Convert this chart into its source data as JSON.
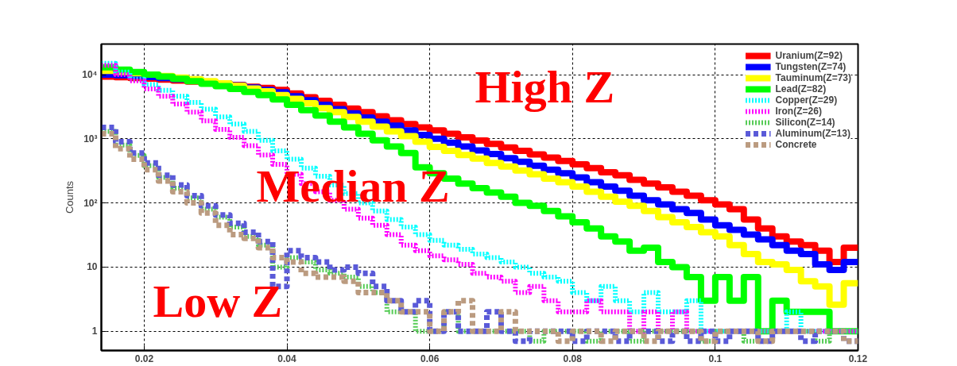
{
  "chart_data": {
    "type": "histogram",
    "ylabel": "Counts",
    "log": "y",
    "grid": true,
    "legend": "top right",
    "xlim": [
      0.014,
      0.12
    ],
    "xticks": [
      0.02,
      0.04,
      0.06,
      0.08,
      0.1,
      0.12
    ],
    "ylim": [
      0.5,
      30000
    ],
    "yticks": [
      1,
      10,
      {
        "value": 100,
        "label": "10²"
      },
      {
        "value": 1000,
        "label": "10³"
      },
      {
        "value": 10000,
        "label": "10⁴"
      }
    ],
    "annotations": [
      "High Z",
      "Median Z",
      "Low Z"
    ],
    "bins": [
      0.014,
      0.016,
      0.018,
      0.02,
      0.022,
      0.024,
      0.026,
      0.028,
      0.03,
      0.032,
      0.034,
      0.036,
      0.038,
      0.04,
      0.042,
      0.044,
      0.046,
      0.048,
      0.05,
      0.052,
      0.054,
      0.056,
      0.058,
      0.06,
      0.062,
      0.064,
      0.066,
      0.068,
      0.07,
      0.072,
      0.074,
      0.076,
      0.078,
      0.08,
      0.082,
      0.084,
      0.086,
      0.088,
      0.09,
      0.092,
      0.094,
      0.096,
      0.098,
      0.1,
      0.102,
      0.104,
      0.106,
      0.108,
      0.11,
      0.112,
      0.114,
      0.116,
      0.118,
      0.12
    ],
    "series": [
      {
        "name": "Uranium(Z=92)",
        "color": "#ff0000",
        "line_style": "solid",
        "values": [
          9300,
          9100,
          8900,
          8700,
          8400,
          8100,
          7800,
          7500,
          7200,
          6900,
          6500,
          6200,
          5800,
          5100,
          4450,
          3900,
          3400,
          2950,
          2600,
          2250,
          1950,
          1700,
          1500,
          1350,
          1200,
          1050,
          940,
          830,
          730,
          650,
          570,
          510,
          450,
          400,
          350,
          300,
          270,
          230,
          200,
          175,
          150,
          130,
          110,
          95,
          80,
          55,
          40,
          30,
          25,
          22,
          18,
          12,
          20
        ]
      },
      {
        "name": "Tungsten(Z=74)",
        "color": "#0000ff",
        "line_style": "solid",
        "values": [
          10000,
          9800,
          9500,
          9200,
          8900,
          8500,
          8100,
          7700,
          7300,
          6800,
          6300,
          5800,
          5300,
          4600,
          4000,
          3400,
          2900,
          2500,
          2150,
          1850,
          1600,
          1350,
          1150,
          1000,
          870,
          760,
          660,
          580,
          500,
          440,
          380,
          330,
          290,
          250,
          210,
          180,
          155,
          130,
          110,
          95,
          80,
          70,
          55,
          45,
          38,
          32,
          27,
          22,
          18,
          16,
          11,
          9,
          12
        ]
      },
      {
        "name": "Tauminum(Z=73)",
        "color": "#ffff00",
        "line_style": "solid",
        "values": [
          11500,
          11000,
          10500,
          10000,
          9500,
          9000,
          8500,
          7900,
          7300,
          6700,
          6100,
          5500,
          4800,
          4200,
          3600,
          3000,
          2600,
          2200,
          1850,
          1550,
          1300,
          1100,
          900,
          750,
          650,
          560,
          490,
          420,
          370,
          320,
          280,
          240,
          210,
          180,
          150,
          125,
          105,
          90,
          75,
          60,
          50,
          42,
          35,
          30,
          22,
          16,
          12,
          11,
          9,
          6,
          5,
          2.6,
          5.6
        ]
      },
      {
        "name": "Lead(Z=82)",
        "color": "#00ff00",
        "line_style": "solid",
        "values": [
          13000,
          12000,
          11000,
          10000,
          9300,
          8600,
          7900,
          7200,
          6600,
          6000,
          5400,
          4800,
          4100,
          3400,
          2800,
          2300,
          1850,
          1500,
          1200,
          950,
          760,
          600,
          360,
          290,
          240,
          200,
          170,
          145,
          125,
          100,
          90,
          75,
          62,
          50,
          40,
          30,
          25,
          18,
          20,
          12,
          10,
          7,
          3,
          7,
          3,
          7,
          1,
          3,
          2,
          2,
          2,
          1,
          1
        ]
      },
      {
        "name": "Copper(Z=29)",
        "color": "#00ffff",
        "line_style": "dotted",
        "values": [
          15000,
          11000,
          8500,
          7000,
          5700,
          4600,
          3700,
          2900,
          2200,
          1700,
          1300,
          950,
          650,
          480,
          350,
          260,
          190,
          140,
          100,
          75,
          55,
          42,
          32,
          26,
          22,
          19,
          16,
          14,
          12,
          10,
          8,
          7,
          6,
          4,
          3,
          5,
          3,
          2,
          4,
          2,
          2,
          3,
          1,
          1,
          1,
          1,
          1,
          1,
          2,
          1,
          1,
          1,
          1
        ]
      },
      {
        "name": "Iron(Z=26)",
        "color": "#ff00ff",
        "line_style": "dotted",
        "values": [
          14000,
          10000,
          8000,
          6000,
          4600,
          3500,
          2600,
          1900,
          1400,
          1050,
          780,
          560,
          400,
          280,
          200,
          150,
          110,
          80,
          58,
          45,
          32,
          22,
          18,
          15,
          13,
          11,
          8,
          7,
          6,
          4,
          5,
          3,
          2,
          2,
          3,
          2,
          2,
          1,
          2,
          1,
          2,
          1,
          1,
          1,
          1,
          1,
          1,
          1,
          1,
          1,
          1,
          1,
          1
        ]
      },
      {
        "name": "Silicon(Z=14)",
        "color": "#55cc55",
        "line_style": "dotted",
        "values": [
          1300,
          800,
          550,
          380,
          250,
          170,
          120,
          80,
          60,
          42,
          30,
          22,
          10,
          14,
          12,
          9,
          8,
          7,
          5,
          4,
          2,
          2,
          1,
          1,
          2,
          1,
          1,
          1,
          1,
          1,
          0.7,
          1,
          1,
          1,
          0.7,
          1,
          1,
          0.7,
          1,
          1,
          1,
          1,
          0.7,
          1,
          1,
          0.7,
          1,
          1,
          1,
          1,
          0.7,
          1,
          1
        ]
      },
      {
        "name": "Aluminum(Z=13)",
        "color": "#5a5ad8",
        "line_style": "dashed",
        "values": [
          1500,
          900,
          600,
          420,
          270,
          190,
          130,
          90,
          65,
          48,
          35,
          25,
          5,
          18,
          14,
          12,
          9,
          10,
          8,
          5,
          3,
          2,
          3,
          1,
          2,
          1,
          1,
          2,
          1,
          0.7,
          1,
          1,
          1,
          0.7,
          1,
          1,
          0.7,
          1,
          1,
          0.7,
          1,
          0.7,
          1,
          0.7,
          1,
          1,
          0.7,
          1,
          1,
          0.7,
          1,
          1,
          0.7
        ]
      },
      {
        "name": "Concrete",
        "color": "#bb9b80",
        "line_style": "dashed",
        "values": [
          1200,
          700,
          480,
          330,
          220,
          150,
          100,
          70,
          45,
          32,
          28,
          20,
          14,
          12,
          8,
          7,
          7,
          6,
          4,
          4,
          3,
          2,
          2,
          1,
          2,
          3,
          1,
          1,
          2,
          1,
          1,
          1,
          0.7,
          1,
          1,
          0.7,
          1,
          1,
          0.7,
          1,
          1,
          1,
          0.7,
          1,
          1,
          1,
          0.7,
          1,
          1,
          1,
          1,
          1,
          0.7
        ]
      }
    ]
  }
}
